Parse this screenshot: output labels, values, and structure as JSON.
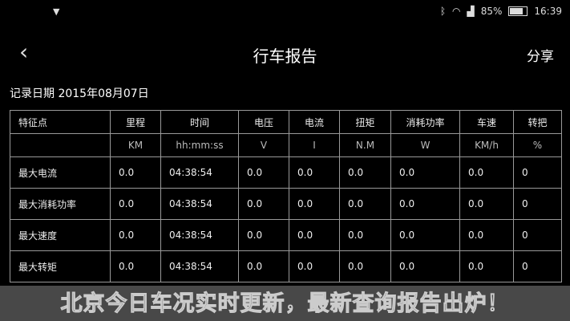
{
  "status": {
    "bluetooth_icon": "bluetooth-icon",
    "wifi_icon": "wifi-icon",
    "signal_icon": "signal-icon",
    "battery": "85%",
    "battery_level": 85,
    "time": "16:39"
  },
  "appbar": {
    "title": "行车报告",
    "share": "分享"
  },
  "date_label": "记录日期 2015年08月07日",
  "table": {
    "headers": [
      "特征点",
      "里程",
      "时间",
      "电压",
      "电流",
      "扭矩",
      "消耗功率",
      "车速",
      "转把"
    ],
    "units": [
      "",
      "KM",
      "hh:mm:ss",
      "V",
      "I",
      "N.M",
      "W",
      "KM/h",
      "%"
    ],
    "rows": [
      [
        "最大电流",
        "0.0",
        "04:38:54",
        "0.0",
        "0.0",
        "0.0",
        "0.0",
        "0.0",
        "0"
      ],
      [
        "最大消耗功率",
        "0.0",
        "04:38:54",
        "0.0",
        "0.0",
        "0.0",
        "0.0",
        "0.0",
        "0"
      ],
      [
        "最大速度",
        "0.0",
        "04:38:54",
        "0.0",
        "0.0",
        "0.0",
        "0.0",
        "0.0",
        "0"
      ],
      [
        "最大转矩",
        "0.0",
        "04:38:54",
        "0.0",
        "0.0",
        "0.0",
        "0.0",
        "0.0",
        "0"
      ]
    ]
  },
  "overlay_text": "北京今日车况实时更新，最新查询报告出炉！"
}
